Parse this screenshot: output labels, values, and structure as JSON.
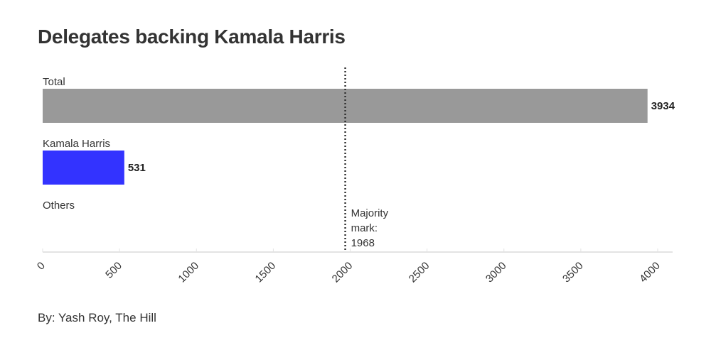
{
  "chart_data": {
    "type": "bar",
    "orientation": "horizontal",
    "title": "Delegates backing Kamala Harris",
    "categories": [
      "Total",
      "Kamala Harris",
      "Others"
    ],
    "values": [
      3934,
      531,
      0
    ],
    "colors": [
      "#999999",
      "#3333ff",
      "#999999"
    ],
    "xlim": [
      0,
      4000
    ],
    "xticks": [
      0,
      500,
      1000,
      1500,
      2000,
      2500,
      3000,
      3500,
      4000
    ],
    "reference_line": {
      "value": 1968,
      "label_lines": [
        "Majority",
        "mark:",
        "1968"
      ],
      "style": "dotted"
    },
    "grid": false,
    "credit": "By: Yash Roy, The Hill"
  }
}
